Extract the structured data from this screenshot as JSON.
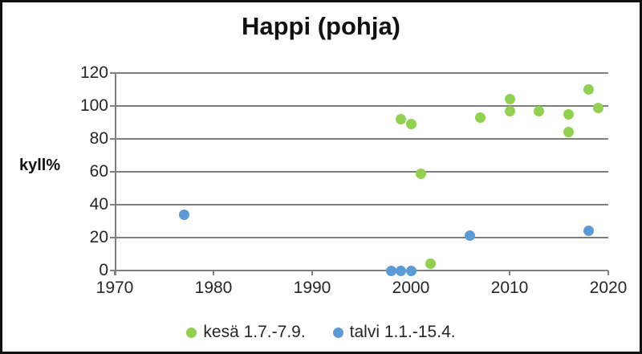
{
  "chart_data": {
    "type": "scatter",
    "title": "Happi (pohja)",
    "xlabel": "",
    "ylabel": "kyll%",
    "xlim": [
      1970,
      2020
    ],
    "ylim": [
      0,
      120
    ],
    "x_ticks": [
      1970,
      1980,
      1990,
      2000,
      2010,
      2020
    ],
    "y_ticks": [
      0,
      20,
      40,
      60,
      80,
      100,
      120
    ],
    "grid": "horizontal",
    "grid_color": "#7f7f7f",
    "legend_position": "bottom",
    "series": [
      {
        "name": "kesä 1.7.-7.9.",
        "color": "#92d050",
        "points": [
          [
            1999,
            92
          ],
          [
            2000,
            89
          ],
          [
            2001,
            59
          ],
          [
            2002,
            4
          ],
          [
            2007,
            93
          ],
          [
            2010,
            104
          ],
          [
            2010,
            97
          ],
          [
            2013,
            97
          ],
          [
            2016,
            95
          ],
          [
            2016,
            84
          ],
          [
            2018,
            110
          ],
          [
            2019,
            99
          ]
        ]
      },
      {
        "name": "talvi 1.1.-15.4.",
        "color": "#5b9bd5",
        "points": [
          [
            1977,
            34
          ],
          [
            1998,
            0
          ],
          [
            1999,
            0
          ],
          [
            2000,
            0
          ],
          [
            2006,
            21
          ],
          [
            2018,
            24
          ]
        ]
      }
    ]
  }
}
